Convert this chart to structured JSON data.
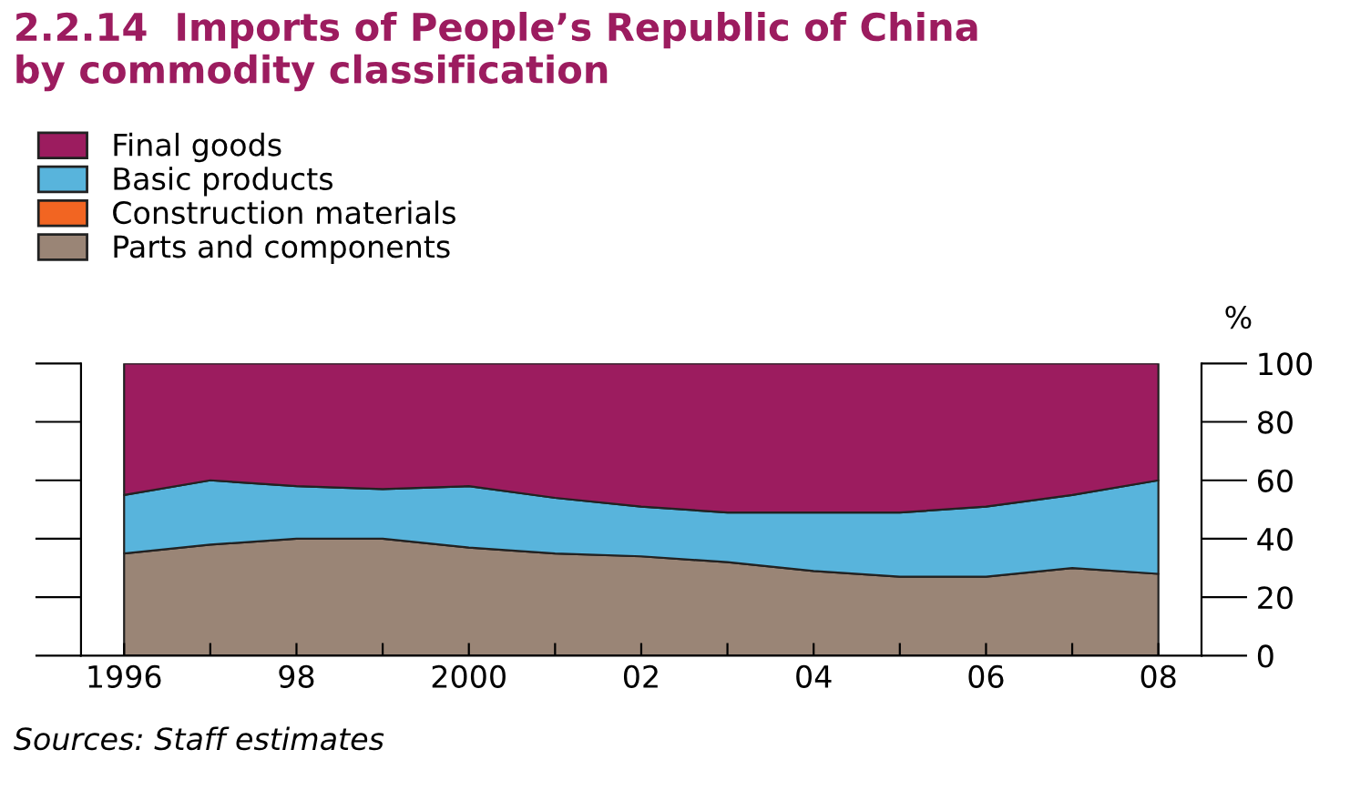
{
  "chart_data": {
    "type": "area",
    "stacked": true,
    "title": "2.2.14  Imports of People’s Republic of China\nby commodity classification",
    "ylabel": "%",
    "x": [
      1996,
      1997,
      1998,
      1999,
      2000,
      2001,
      2002,
      2003,
      2004,
      2005,
      2006,
      2007,
      2008
    ],
    "series": [
      {
        "name": "Parts and components",
        "color": "#9a8576",
        "values": [
          35,
          38,
          40,
          40,
          37,
          35,
          34,
          32,
          29,
          27,
          27,
          30,
          28
        ]
      },
      {
        "name": "Construction materials",
        "color": "#f26522",
        "values": [
          null,
          null,
          null,
          null,
          null,
          null,
          null,
          null,
          null,
          null,
          null,
          null,
          null
        ]
      },
      {
        "name": "Basic products",
        "color": "#58b4dc",
        "values": [
          20,
          22,
          18,
          17,
          21,
          19,
          17,
          17,
          20,
          22,
          24,
          25,
          32
        ]
      },
      {
        "name": "Final goods",
        "color": "#9c1c5f",
        "values": [
          45,
          40,
          42,
          43,
          42,
          46,
          49,
          51,
          51,
          51,
          49,
          45,
          40
        ]
      }
    ],
    "xlim": [
      1995.5,
      2008.5
    ],
    "xticks": [
      {
        "value": 1996,
        "label": "1996"
      },
      {
        "value": 1997,
        "label": null
      },
      {
        "value": 1998,
        "label": "98"
      },
      {
        "value": 1999,
        "label": null
      },
      {
        "value": 2000,
        "label": "2000"
      },
      {
        "value": 2001,
        "label": null
      },
      {
        "value": 2002,
        "label": "02"
      },
      {
        "value": 2003,
        "label": null
      },
      {
        "value": 2004,
        "label": "04"
      },
      {
        "value": 2005,
        "label": null
      },
      {
        "value": 2006,
        "label": "06"
      },
      {
        "value": 2007,
        "label": null
      },
      {
        "value": 2008,
        "label": "08"
      }
    ],
    "ylim": [
      0,
      100
    ],
    "yticks": [
      0,
      20,
      40,
      60,
      80,
      100
    ],
    "legend": "top left",
    "grid": false,
    "annotations": [
      "Sources: Staff estimates"
    ]
  }
}
